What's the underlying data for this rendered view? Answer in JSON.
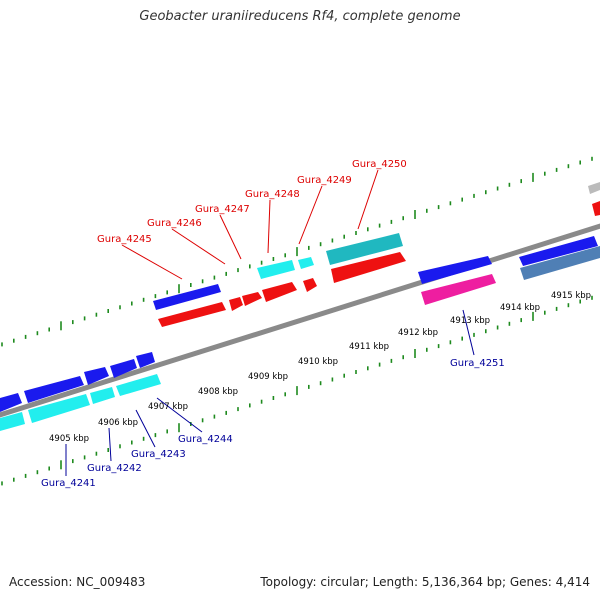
{
  "title": "Geobacter uraniireducens Rf4, complete genome",
  "footer": {
    "accession": "Accession: NC_009483",
    "summary": "Topology: circular; Length: 5,136,364 bp; Genes: 4,414"
  },
  "colors": {
    "background": "#ffffff",
    "backbone": "#8a8a8a",
    "tick": "#1e8a1e",
    "gene_blue": "#1a1aee",
    "gene_red": "#ee1111",
    "gene_cyan": "#22eeee",
    "gene_teal": "#20b8c0",
    "gene_magenta": "#ee1ea0",
    "gene_steel": "#4f7fb5",
    "gene_grey": "#bbbbbb",
    "label_top": "#dd0000",
    "label_bottom": "#000099",
    "kbp_label": "#000000"
  },
  "kbp_labels": [
    "4905 kbp",
    "4906 kbp",
    "4907 kbp",
    "4908 kbp",
    "4909 kbp",
    "4910 kbp",
    "4911 kbp",
    "4912 kbp",
    "4913 kbp",
    "4914 kbp",
    "4915 kbp"
  ],
  "top_genes": [
    "Gura_4245",
    "Gura_4246",
    "Gura_4247",
    "Gura_4248",
    "Gura_4249",
    "Gura_4250"
  ],
  "bottom_genes": [
    "Gura_4241",
    "Gura_4242",
    "Gura_4243",
    "Gura_4244",
    "Gura_4251"
  ]
}
